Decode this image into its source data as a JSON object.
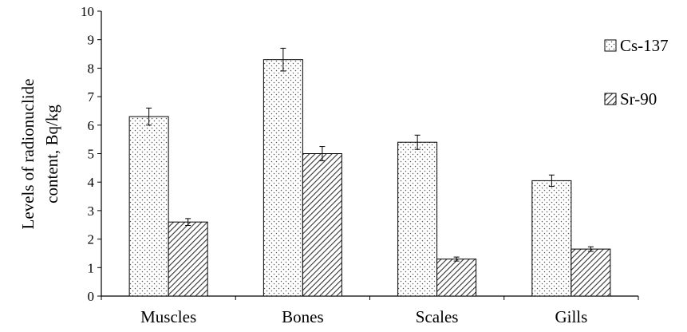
{
  "chart_data": {
    "type": "bar",
    "title": "",
    "xlabel": "",
    "ylabel": [
      "Levels of radionuclide",
      "content, Bq/kg"
    ],
    "ylim": [
      0,
      10
    ],
    "yticks": [
      "0",
      "1",
      "2",
      "3",
      "4",
      "5",
      "6",
      "7",
      "8",
      "9",
      "10"
    ],
    "grid": false,
    "legend_position": "right",
    "categories": [
      "Muscles",
      "Bones",
      "Scales",
      "Gills"
    ],
    "series": [
      {
        "name": "Cs-137",
        "pattern": "dots",
        "values": [
          6.3,
          8.3,
          5.4,
          4.05
        ],
        "errors": [
          0.3,
          0.4,
          0.25,
          0.2
        ]
      },
      {
        "name": "Sr-90",
        "pattern": "hatch",
        "values": [
          2.6,
          5.0,
          1.3,
          1.65
        ],
        "errors": [
          0.12,
          0.25,
          0.07,
          0.08
        ]
      }
    ]
  }
}
